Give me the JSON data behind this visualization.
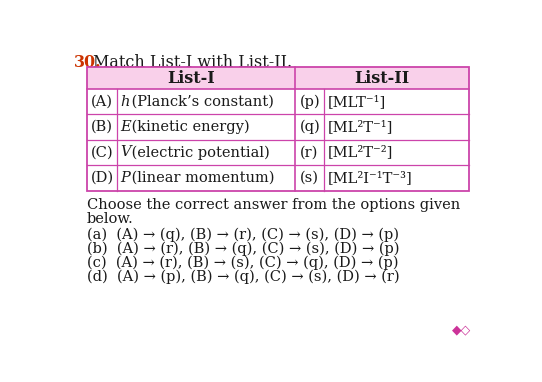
{
  "question_number": "30.",
  "question_text": "Match List-I with List-II.",
  "table": {
    "header_list1": "List-I",
    "header_list2": "List-II",
    "rows": [
      {
        "left_label": "(A)",
        "left_var": "h",
        "left_rest": " (Planck’s constant)",
        "right_label": "(p)",
        "right_text": "[MLT⁻¹]"
      },
      {
        "left_label": "(B)",
        "left_var": "E",
        "left_rest": " (kinetic energy)",
        "right_label": "(q)",
        "right_text": "[ML²T⁻¹]"
      },
      {
        "left_label": "(C)",
        "left_var": "V",
        "left_rest": " (electric potential)",
        "right_label": "(r)",
        "right_text": "[ML²T⁻²]"
      },
      {
        "left_label": "(D)",
        "left_var": "P",
        "left_rest": " (linear momentum)",
        "right_label": "(s)",
        "right_text": "[ML²I⁻¹T⁻³]"
      }
    ]
  },
  "options_header1": "Choose the correct answer from the options given",
  "options_header2": "below.",
  "options": [
    "(a)  (A) → (q), (B) → (r), (C) → (s), (D) → (p)",
    "(b)  (A) → (r), (B) → (q), (C) → (s), (D) → (p)",
    "(c)  (A) → (r), (B) → (s), (C) → (q), (D) → (p)",
    "(d)  (A) → (p), (B) → (q), (C) → (s), (D) → (r)"
  ],
  "bg_color": "#ffffff",
  "table_header_bg": "#f9d0ea",
  "table_border_color": "#cc44aa",
  "question_number_color": "#cc3300",
  "text_color": "#1a1a1a",
  "font_size": 10.5,
  "title_font_size": 11.5
}
